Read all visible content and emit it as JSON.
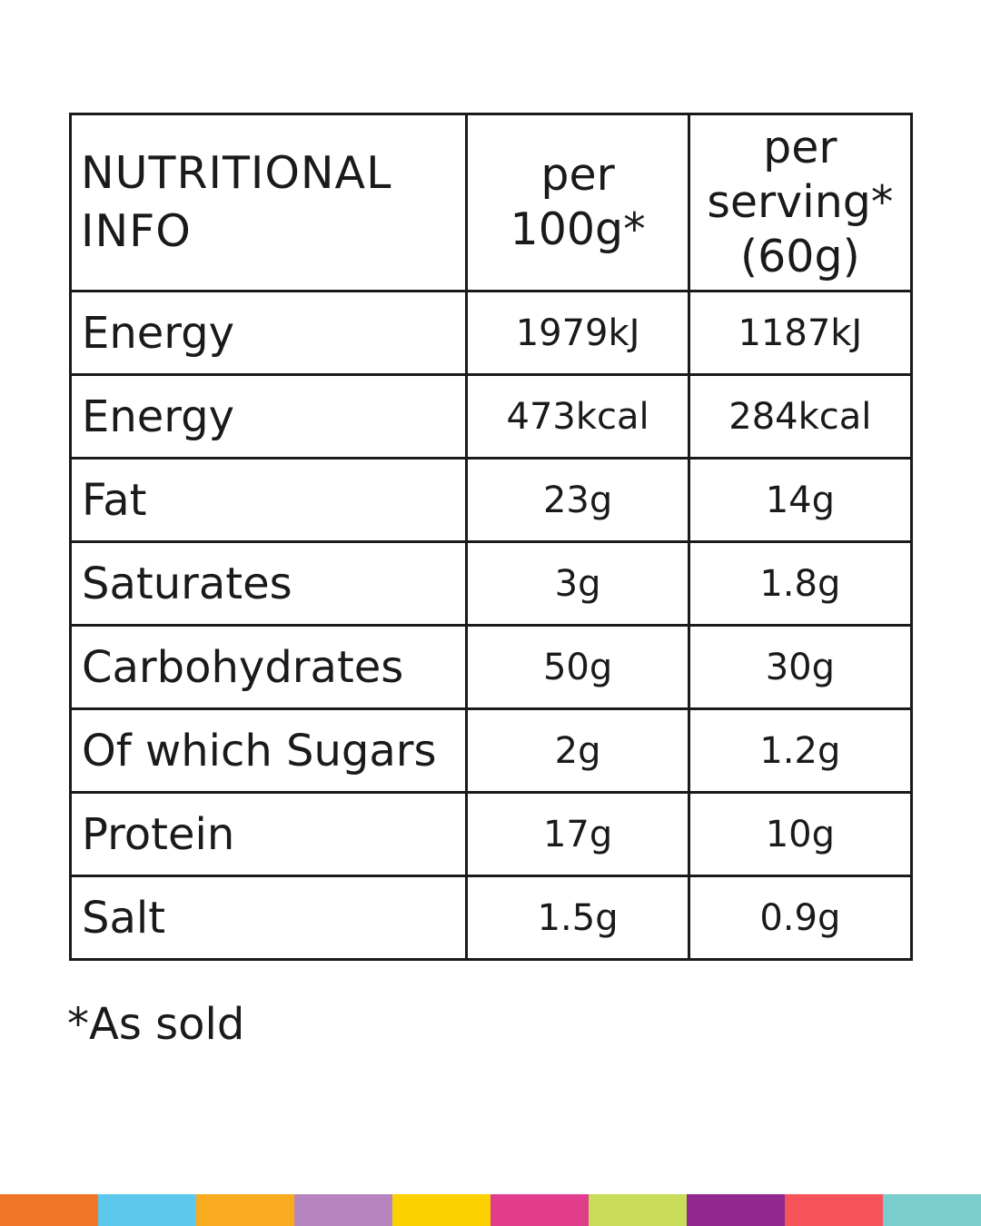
{
  "table": {
    "header": {
      "name_lines": [
        "NUTRITIONAL",
        "INFO"
      ],
      "per100_lines": [
        "per",
        "100g*"
      ],
      "serving_lines": [
        "per",
        "serving*",
        "(60g)"
      ]
    },
    "rows": [
      {
        "name": "Energy",
        "per100": "1979kJ",
        "serving": "1187kJ"
      },
      {
        "name": "Energy",
        "per100": "473kcal",
        "serving": "284kcal"
      },
      {
        "name": "Fat",
        "per100": "23g",
        "serving": "14g"
      },
      {
        "name": "Saturates",
        "per100": "3g",
        "serving": "1.8g"
      },
      {
        "name": "Carbohydrates",
        "per100": "50g",
        "serving": "30g"
      },
      {
        "name": "Of which Sugars",
        "per100": "2g",
        "serving": "1.2g"
      },
      {
        "name": "Protein",
        "per100": "17g",
        "serving": "10g"
      },
      {
        "name": "Salt",
        "per100": "1.5g",
        "serving": "0.9g"
      }
    ]
  },
  "footnote": "*As sold",
  "color_bar": [
    "#f07527",
    "#5ec8ec",
    "#f9ab1f",
    "#b685bd",
    "#fbd200",
    "#e23c8c",
    "#c8dc5a",
    "#92278f",
    "#f6535a",
    "#79cdcd"
  ]
}
